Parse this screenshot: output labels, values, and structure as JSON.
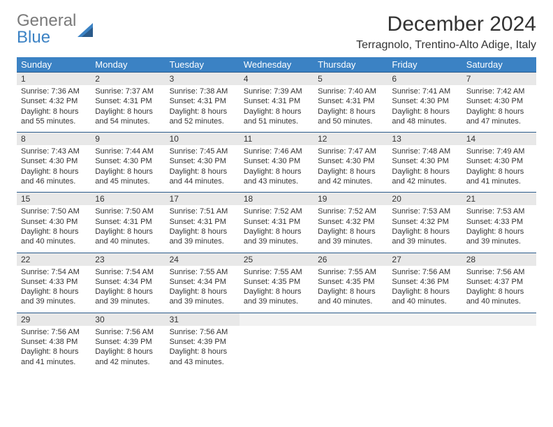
{
  "logo": {
    "text1": "General",
    "text2": "Blue"
  },
  "title": "December 2024",
  "location": "Terragnolo, Trentino-Alto Adige, Italy",
  "colors": {
    "header_bg": "#3b82c4",
    "header_text": "#ffffff",
    "daynum_bg": "#e8e8e8",
    "border": "#2a5a8a",
    "text": "#333333",
    "logo_gray": "#7a7a7a",
    "logo_blue": "#3b82c4"
  },
  "weekdays": [
    "Sunday",
    "Monday",
    "Tuesday",
    "Wednesday",
    "Thursday",
    "Friday",
    "Saturday"
  ],
  "weeks": [
    [
      {
        "n": "1",
        "sr": "7:36 AM",
        "ss": "4:32 PM",
        "dl": "8 hours and 55 minutes."
      },
      {
        "n": "2",
        "sr": "7:37 AM",
        "ss": "4:31 PM",
        "dl": "8 hours and 54 minutes."
      },
      {
        "n": "3",
        "sr": "7:38 AM",
        "ss": "4:31 PM",
        "dl": "8 hours and 52 minutes."
      },
      {
        "n": "4",
        "sr": "7:39 AM",
        "ss": "4:31 PM",
        "dl": "8 hours and 51 minutes."
      },
      {
        "n": "5",
        "sr": "7:40 AM",
        "ss": "4:31 PM",
        "dl": "8 hours and 50 minutes."
      },
      {
        "n": "6",
        "sr": "7:41 AM",
        "ss": "4:30 PM",
        "dl": "8 hours and 48 minutes."
      },
      {
        "n": "7",
        "sr": "7:42 AM",
        "ss": "4:30 PM",
        "dl": "8 hours and 47 minutes."
      }
    ],
    [
      {
        "n": "8",
        "sr": "7:43 AM",
        "ss": "4:30 PM",
        "dl": "8 hours and 46 minutes."
      },
      {
        "n": "9",
        "sr": "7:44 AM",
        "ss": "4:30 PM",
        "dl": "8 hours and 45 minutes."
      },
      {
        "n": "10",
        "sr": "7:45 AM",
        "ss": "4:30 PM",
        "dl": "8 hours and 44 minutes."
      },
      {
        "n": "11",
        "sr": "7:46 AM",
        "ss": "4:30 PM",
        "dl": "8 hours and 43 minutes."
      },
      {
        "n": "12",
        "sr": "7:47 AM",
        "ss": "4:30 PM",
        "dl": "8 hours and 42 minutes."
      },
      {
        "n": "13",
        "sr": "7:48 AM",
        "ss": "4:30 PM",
        "dl": "8 hours and 42 minutes."
      },
      {
        "n": "14",
        "sr": "7:49 AM",
        "ss": "4:30 PM",
        "dl": "8 hours and 41 minutes."
      }
    ],
    [
      {
        "n": "15",
        "sr": "7:50 AM",
        "ss": "4:30 PM",
        "dl": "8 hours and 40 minutes."
      },
      {
        "n": "16",
        "sr": "7:50 AM",
        "ss": "4:31 PM",
        "dl": "8 hours and 40 minutes."
      },
      {
        "n": "17",
        "sr": "7:51 AM",
        "ss": "4:31 PM",
        "dl": "8 hours and 39 minutes."
      },
      {
        "n": "18",
        "sr": "7:52 AM",
        "ss": "4:31 PM",
        "dl": "8 hours and 39 minutes."
      },
      {
        "n": "19",
        "sr": "7:52 AM",
        "ss": "4:32 PM",
        "dl": "8 hours and 39 minutes."
      },
      {
        "n": "20",
        "sr": "7:53 AM",
        "ss": "4:32 PM",
        "dl": "8 hours and 39 minutes."
      },
      {
        "n": "21",
        "sr": "7:53 AM",
        "ss": "4:33 PM",
        "dl": "8 hours and 39 minutes."
      }
    ],
    [
      {
        "n": "22",
        "sr": "7:54 AM",
        "ss": "4:33 PM",
        "dl": "8 hours and 39 minutes."
      },
      {
        "n": "23",
        "sr": "7:54 AM",
        "ss": "4:34 PM",
        "dl": "8 hours and 39 minutes."
      },
      {
        "n": "24",
        "sr": "7:55 AM",
        "ss": "4:34 PM",
        "dl": "8 hours and 39 minutes."
      },
      {
        "n": "25",
        "sr": "7:55 AM",
        "ss": "4:35 PM",
        "dl": "8 hours and 39 minutes."
      },
      {
        "n": "26",
        "sr": "7:55 AM",
        "ss": "4:35 PM",
        "dl": "8 hours and 40 minutes."
      },
      {
        "n": "27",
        "sr": "7:56 AM",
        "ss": "4:36 PM",
        "dl": "8 hours and 40 minutes."
      },
      {
        "n": "28",
        "sr": "7:56 AM",
        "ss": "4:37 PM",
        "dl": "8 hours and 40 minutes."
      }
    ],
    [
      {
        "n": "29",
        "sr": "7:56 AM",
        "ss": "4:38 PM",
        "dl": "8 hours and 41 minutes."
      },
      {
        "n": "30",
        "sr": "7:56 AM",
        "ss": "4:39 PM",
        "dl": "8 hours and 42 minutes."
      },
      {
        "n": "31",
        "sr": "7:56 AM",
        "ss": "4:39 PM",
        "dl": "8 hours and 43 minutes."
      },
      null,
      null,
      null,
      null
    ]
  ],
  "labels": {
    "sunrise": "Sunrise: ",
    "sunset": "Sunset: ",
    "daylight": "Daylight: "
  }
}
